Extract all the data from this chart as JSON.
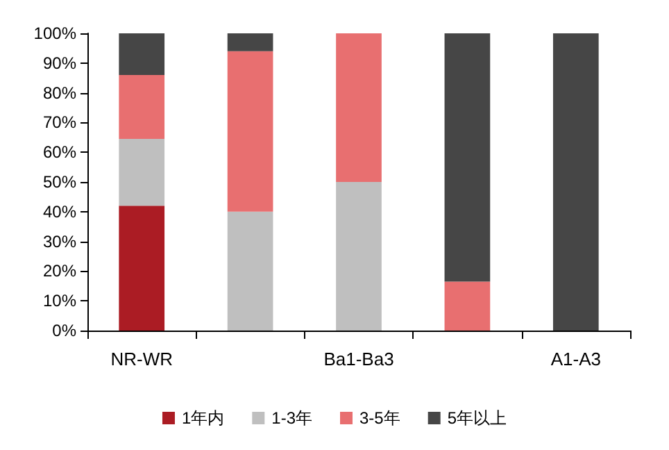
{
  "chart_data": {
    "type": "bar",
    "stacked": true,
    "categories": [
      "NR-WR",
      null,
      "Ba1-Ba3",
      null,
      "A1-A3"
    ],
    "series": [
      {
        "name": "1年内",
        "color": "#ab1c24",
        "values": [
          42,
          0,
          0,
          0,
          0
        ]
      },
      {
        "name": "1-3年",
        "color": "#bfbfbf",
        "values": [
          22.5,
          40,
          50,
          0,
          0
        ]
      },
      {
        "name": "3-5年",
        "color": "#e86f70",
        "values": [
          21.5,
          54,
          50,
          16.5,
          0
        ]
      },
      {
        "name": "5年以上",
        "color": "#464646",
        "values": [
          14,
          6,
          0,
          83.5,
          100
        ]
      }
    ],
    "ylim": [
      0,
      100
    ],
    "yticks": [
      {
        "value": 0,
        "label": "0%"
      },
      {
        "value": 10,
        "label": "10%"
      },
      {
        "value": 20,
        "label": "20%"
      },
      {
        "value": 30,
        "label": "30%"
      },
      {
        "value": 40,
        "label": "40%"
      },
      {
        "value": 50,
        "label": "50%"
      },
      {
        "value": 60,
        "label": "60%"
      },
      {
        "value": 70,
        "label": "70%"
      },
      {
        "value": 80,
        "label": "80%"
      },
      {
        "value": 90,
        "label": "90%"
      },
      {
        "value": 100,
        "label": "100%"
      }
    ],
    "grid": false,
    "legend": "bottom"
  }
}
